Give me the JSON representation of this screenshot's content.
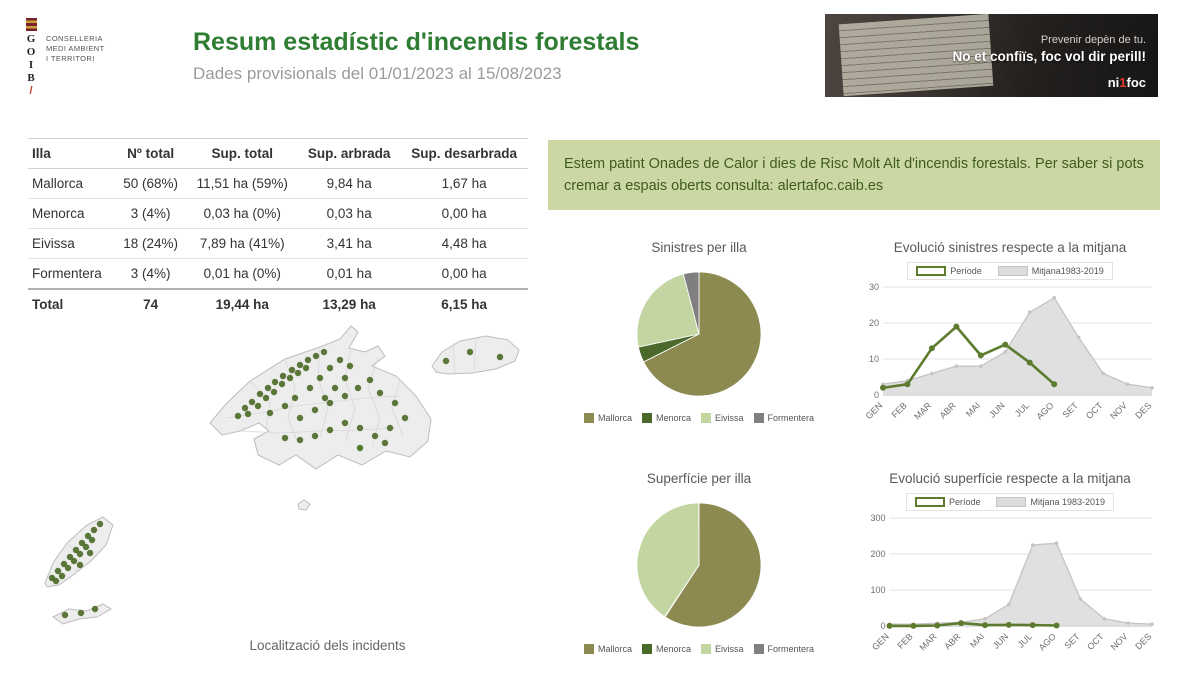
{
  "logo": {
    "letters": [
      "G",
      "O",
      "I",
      "B"
    ],
    "slash": "/",
    "department_lines": [
      "CONSELLERIA",
      "MEDI AMBIENT",
      "I TERRITORI"
    ]
  },
  "header": {
    "title": "Resum estadístic d'incendis forestals",
    "subtitle": "Dades provisionals del 01/01/2023 al 15/08/2023"
  },
  "banner": {
    "line1": "Prevenir depèn de tu.",
    "line2": "No et confiïs, foc vol dir perill!",
    "brand_prefix": "ni",
    "brand_number": "1",
    "brand_suffix": "foc"
  },
  "table": {
    "headers": [
      "Illa",
      "Nº total",
      "Sup. total",
      "Sup. arbrada",
      "Sup. desarbrada"
    ],
    "rows": [
      [
        "Mallorca",
        "50 (68%)",
        "11,51 ha (59%)",
        "9,84 ha",
        "1,67 ha"
      ],
      [
        "Menorca",
        "3 (4%)",
        "0,03 ha (0%)",
        "0,03 ha",
        "0,00 ha"
      ],
      [
        "Eivissa",
        "18 (24%)",
        "7,89 ha (41%)",
        "3,41 ha",
        "4,48 ha"
      ],
      [
        "Formentera",
        "3 (4%)",
        "0,01 ha (0%)",
        "0,01 ha",
        "0,00 ha"
      ]
    ],
    "total_row": [
      "Total",
      "74",
      "19,44 ha",
      "13,29 ha",
      "6,15 ha"
    ]
  },
  "notice": {
    "text": "Estem patint Onades de Calor i dies de Risc Molt Alt d'incendis forestals. Per saber si pots cremar a espais oberts consulta: ",
    "link": "alertafoc.caib.es"
  },
  "map": {
    "caption": "Localització dels incidents",
    "points": {
      "mallorca": [
        [
          38,
          98
        ],
        [
          45,
          90
        ],
        [
          52,
          84
        ],
        [
          60,
          76
        ],
        [
          68,
          70
        ],
        [
          75,
          64
        ],
        [
          83,
          58
        ],
        [
          92,
          52
        ],
        [
          100,
          47
        ],
        [
          108,
          42
        ],
        [
          116,
          38
        ],
        [
          124,
          34
        ],
        [
          58,
          88
        ],
        [
          66,
          80
        ],
        [
          74,
          74
        ],
        [
          82,
          66
        ],
        [
          90,
          60
        ],
        [
          98,
          55
        ],
        [
          106,
          50
        ],
        [
          48,
          96
        ],
        [
          70,
          95
        ],
        [
          85,
          88
        ],
        [
          95,
          80
        ],
        [
          110,
          70
        ],
        [
          120,
          60
        ],
        [
          130,
          50
        ],
        [
          140,
          42
        ],
        [
          125,
          80
        ],
        [
          135,
          70
        ],
        [
          145,
          60
        ],
        [
          150,
          48
        ],
        [
          100,
          100
        ],
        [
          115,
          92
        ],
        [
          130,
          85
        ],
        [
          145,
          78
        ],
        [
          158,
          70
        ],
        [
          170,
          62
        ],
        [
          180,
          75
        ],
        [
          195,
          85
        ],
        [
          205,
          100
        ],
        [
          190,
          110
        ],
        [
          175,
          118
        ],
        [
          160,
          110
        ],
        [
          145,
          105
        ],
        [
          130,
          112
        ],
        [
          115,
          118
        ],
        [
          100,
          122
        ],
        [
          85,
          120
        ],
        [
          160,
          130
        ],
        [
          185,
          125
        ]
      ],
      "menorca": [
        [
          18,
          33
        ],
        [
          42,
          24
        ],
        [
          72,
          29
        ]
      ],
      "eivissa": [
        [
          17,
          73
        ],
        [
          23,
          66
        ],
        [
          29,
          59
        ],
        [
          35,
          52
        ],
        [
          41,
          45
        ],
        [
          47,
          38
        ],
        [
          53,
          31
        ],
        [
          59,
          25
        ],
        [
          65,
          19
        ],
        [
          27,
          71
        ],
        [
          33,
          63
        ],
        [
          39,
          56
        ],
        [
          45,
          49
        ],
        [
          51,
          42
        ],
        [
          57,
          35
        ],
        [
          21,
          76
        ],
        [
          45,
          60
        ],
        [
          55,
          48
        ]
      ],
      "formentera": [
        [
          30,
          110
        ],
        [
          46,
          108
        ],
        [
          60,
          104
        ]
      ]
    }
  },
  "colors": {
    "mallorca": "#8d8a51",
    "menorca": "#4c692c",
    "eivissa": "#c3d5a0",
    "formentera": "#7f7f7f",
    "periode": "#5c7b2e",
    "mitjana_fill": "#dedede",
    "mitjana_line": "#c4c4c4",
    "dot": "#4d6b28"
  },
  "chart_data": [
    {
      "id": "pie-sinistres",
      "type": "pie",
      "title": "Sinistres per illa",
      "labels": [
        "Mallorca",
        "Menorca",
        "Eivissa",
        "Formentera"
      ],
      "values": [
        50,
        3,
        18,
        3
      ],
      "percents": [
        "68%",
        "4%",
        "24%",
        "4%"
      ],
      "colors": [
        "#8d8a51",
        "#4c692c",
        "#c3d5a0",
        "#7f7f7f"
      ],
      "legend_position": "bottom"
    },
    {
      "id": "pie-superficie",
      "type": "pie",
      "title": "Superfície per illa",
      "labels": [
        "Mallorca",
        "Menorca",
        "Eivissa",
        "Formentera"
      ],
      "values": [
        11.51,
        0.03,
        7.89,
        0.01
      ],
      "percents": [
        "59%",
        "0%",
        "41%",
        "0%"
      ],
      "colors": [
        "#8d8a51",
        "#4c692c",
        "#c3d5a0",
        "#7f7f7f"
      ],
      "legend_position": "bottom"
    },
    {
      "id": "line-sinistres",
      "type": "line",
      "title": "Evolució sinistres respecte a la mitjana",
      "categories": [
        "GEN",
        "FEB",
        "MAR",
        "ABR",
        "MAI",
        "JUN",
        "JUL",
        "AGO",
        "SET",
        "OCT",
        "NOV",
        "DES"
      ],
      "ylim": [
        0,
        30
      ],
      "yticks": [
        0,
        10,
        20,
        30
      ],
      "grid": true,
      "legend_position": "top",
      "series": [
        {
          "name": "Mitjana1983-2019",
          "type": "area",
          "color": "#c4c4c4",
          "fill": "#dedede",
          "values": [
            3,
            4,
            6,
            8,
            8,
            12,
            23,
            27,
            16,
            6,
            3,
            2
          ]
        },
        {
          "name": "Període",
          "type": "line",
          "color": "#5c7b2e",
          "values": [
            2,
            3,
            13,
            19,
            11,
            14,
            9,
            3,
            null,
            null,
            null,
            null
          ]
        }
      ]
    },
    {
      "id": "line-superficie",
      "type": "line",
      "title": "Evolució superfície respecte a la mitjana",
      "categories": [
        "GEN",
        "FEB",
        "MAR",
        "ABR",
        "MAI",
        "JUN",
        "JUL",
        "AGO",
        "SET",
        "OCT",
        "NOV",
        "DES"
      ],
      "ylim": [
        0,
        300
      ],
      "yticks": [
        0,
        100,
        200,
        300
      ],
      "grid": true,
      "legend_position": "top",
      "series": [
        {
          "name": "Mitjana 1983-2019",
          "type": "area",
          "color": "#c4c4c4",
          "fill": "#dedede",
          "values": [
            5,
            5,
            8,
            10,
            20,
            60,
            225,
            230,
            75,
            20,
            8,
            5
          ]
        },
        {
          "name": "Període",
          "type": "line",
          "color": "#5c7b2e",
          "values": [
            0.2,
            0.4,
            1.5,
            8,
            2.5,
            3,
            2.5,
            1.3,
            null,
            null,
            null,
            null
          ]
        }
      ]
    }
  ]
}
